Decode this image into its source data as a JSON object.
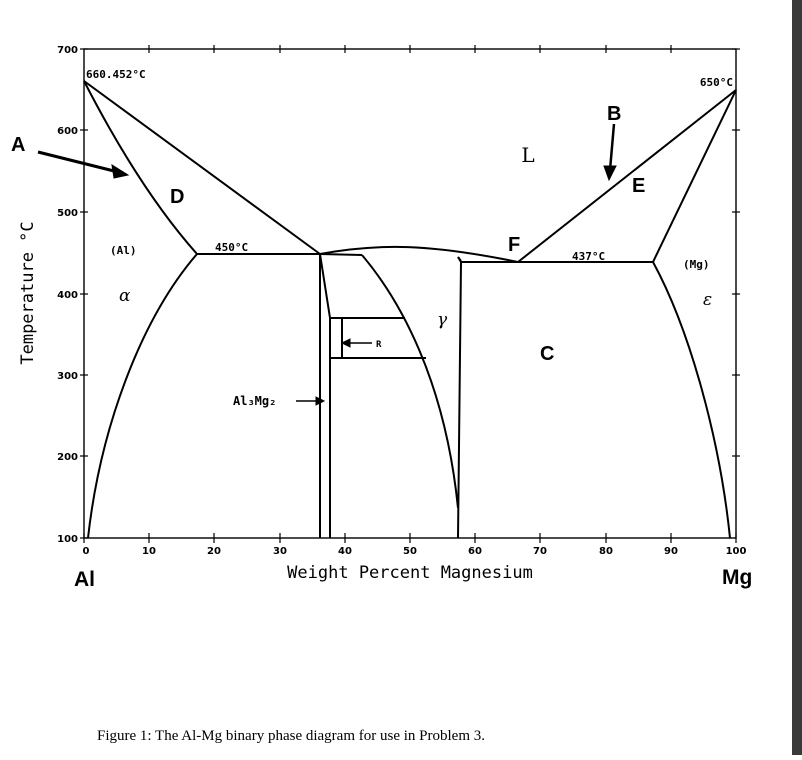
{
  "diagram": {
    "y_axis_title": "Temperature °C",
    "x_axis_title": "Weight Percent Magnesium",
    "y_ticks": [
      "700",
      "600",
      "500",
      "400",
      "300",
      "200",
      "100"
    ],
    "x_ticks": [
      "0",
      "10",
      "20",
      "30",
      "40",
      "50",
      "60",
      "70",
      "80",
      "90",
      "100"
    ],
    "temp_al_melt": "660.452°C",
    "temp_mg_melt": "650°C",
    "temp_eutectic_1": "450°C",
    "temp_eutectic_2": "437°C",
    "phase_l": "L",
    "phase_al": "(Al)",
    "phase_mg": "(Mg)",
    "phase_alpha": "α",
    "phase_gamma": "γ",
    "phase_epsilon": "ε",
    "phase_r": "R",
    "compound": "Al₃Mg₂",
    "label_a": "A",
    "label_b": "B",
    "label_c": "C",
    "label_d": "D",
    "label_e": "E",
    "label_f": "F",
    "end_left": "Al",
    "end_right": "Mg"
  },
  "caption": "Figure 1:  The Al-Mg binary phase diagram for use in Problem 3."
}
